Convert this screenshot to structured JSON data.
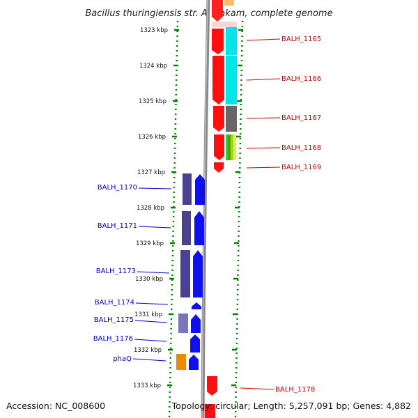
{
  "title": "Bacillus thuringiensis str. Al Hakam, complete genome",
  "footer": {
    "accession": "Accession: NC_008600",
    "topology": "Topology: circular; Length: 5,257,091 bp; Genes: 4,882"
  },
  "scale": {
    "ticks": [
      "1323 kbp",
      "1324 kbp",
      "1325 kbp",
      "1326 kbp",
      "1327 kbp",
      "1328 kbp",
      "1329 kbp",
      "1330 kbp",
      "1331 kbp",
      "1332 kbp",
      "1333 kbp"
    ]
  },
  "colors": {
    "forward_label": "#cc0000",
    "reverse_label": "#0000cc",
    "backbone": "#808080",
    "dotted_line": "#008000"
  },
  "forward_labels": [
    "BALH_1165",
    "BALH_1166",
    "BALH_1167",
    "BALH_1168",
    "BALH_1169",
    "BALH_1178"
  ],
  "reverse_labels": [
    "BALH_1170",
    "BALH_1171",
    "BALH_1173",
    "BALH_1174",
    "BALH_1175",
    "BALH_1176",
    "phaQ"
  ]
}
